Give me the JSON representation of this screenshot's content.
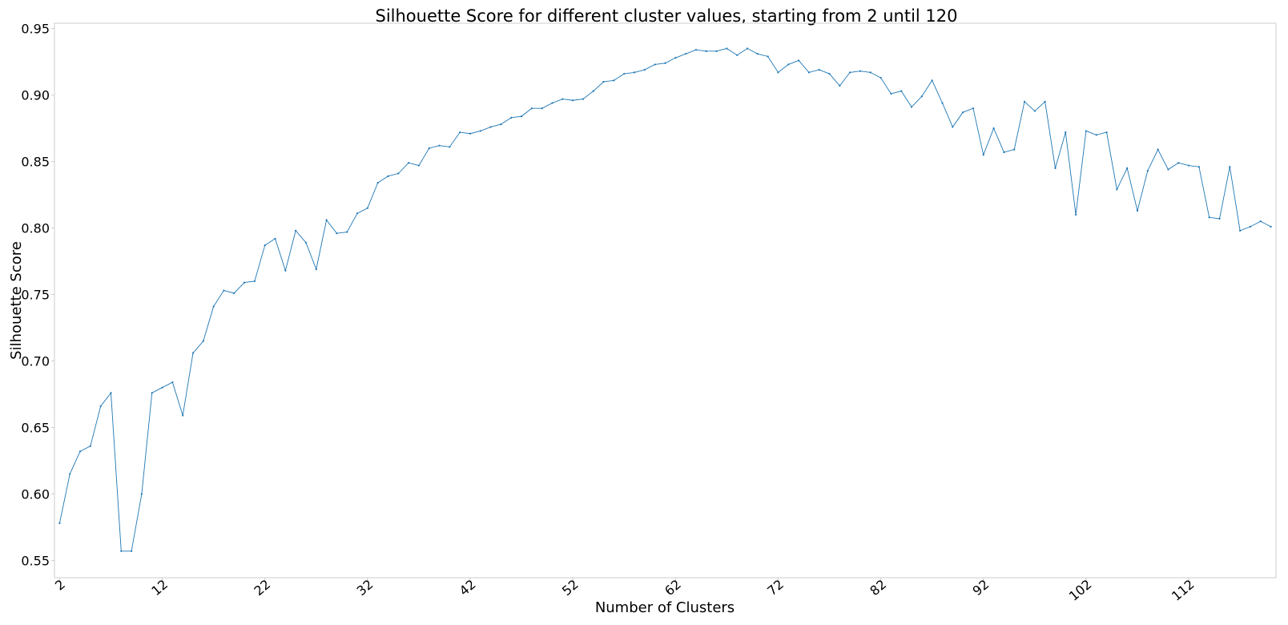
{
  "chart_data": {
    "type": "line",
    "title": "Silhouette Score for different cluster values, starting from 2 until 120",
    "xlabel": "Number of Clusters",
    "ylabel": "Silhouette Score",
    "xlim": [
      1.5,
      120.5
    ],
    "ylim": [
      0.537,
      0.954
    ],
    "xticks": [
      "2",
      "12",
      "22",
      "32",
      "42",
      "52",
      "62",
      "72",
      "82",
      "92",
      "102",
      "112"
    ],
    "yticks": [
      "0.55",
      "0.60",
      "0.65",
      "0.70",
      "0.75",
      "0.80",
      "0.85",
      "0.90",
      "0.95"
    ],
    "grid": false,
    "legend": "none",
    "line_color": "#1f77b4",
    "series": [
      {
        "x": [
          2,
          3,
          4,
          5,
          6,
          7,
          8,
          9,
          10,
          11,
          12,
          13,
          14,
          15,
          16,
          17,
          18,
          19,
          20,
          21,
          22,
          23,
          24,
          25,
          26,
          27,
          28,
          29,
          30,
          31,
          32,
          33,
          34,
          35,
          36,
          37,
          38,
          39,
          40,
          41,
          42,
          43,
          44,
          45,
          46,
          47,
          48,
          49,
          50,
          51,
          52,
          53,
          54,
          55,
          56,
          57,
          58,
          59,
          60,
          61,
          62,
          63,
          64,
          65,
          66,
          67,
          68,
          69,
          70,
          71,
          72,
          73,
          74,
          75,
          76,
          77,
          78,
          79,
          80,
          81,
          82,
          83,
          84,
          85,
          86,
          87,
          88,
          89,
          90,
          91,
          92,
          93,
          94,
          95,
          96,
          97,
          98,
          99,
          100,
          101,
          102,
          103,
          104,
          105,
          106,
          107,
          108,
          109,
          110,
          111,
          112,
          113,
          114,
          115,
          116,
          117,
          118,
          119,
          120
        ],
        "values": [
          0.578,
          0.615,
          0.632,
          0.636,
          0.666,
          0.676,
          0.557,
          0.557,
          0.6,
          0.676,
          0.68,
          0.684,
          0.659,
          0.706,
          0.715,
          0.741,
          0.753,
          0.751,
          0.759,
          0.76,
          0.787,
          0.792,
          0.768,
          0.798,
          0.789,
          0.769,
          0.806,
          0.796,
          0.797,
          0.811,
          0.815,
          0.834,
          0.839,
          0.841,
          0.849,
          0.847,
          0.86,
          0.862,
          0.861,
          0.872,
          0.871,
          0.873,
          0.876,
          0.878,
          0.883,
          0.884,
          0.89,
          0.89,
          0.894,
          0.897,
          0.896,
          0.897,
          0.903,
          0.91,
          0.911,
          0.916,
          0.917,
          0.919,
          0.923,
          0.924,
          0.928,
          0.931,
          0.934,
          0.933,
          0.933,
          0.935,
          0.93,
          0.935,
          0.931,
          0.929,
          0.917,
          0.923,
          0.926,
          0.917,
          0.919,
          0.916,
          0.907,
          0.917,
          0.918,
          0.917,
          0.913,
          0.901,
          0.903,
          0.891,
          0.899,
          0.911,
          0.894,
          0.876,
          0.887,
          0.89,
          0.855,
          0.875,
          0.857,
          0.859,
          0.895,
          0.888,
          0.895,
          0.845,
          0.872,
          0.81,
          0.873,
          0.87,
          0.872,
          0.829,
          0.845,
          0.813,
          0.843,
          0.859,
          0.844,
          0.849,
          0.847,
          0.846,
          0.808,
          0.807,
          0.846,
          0.798,
          0.801,
          0.805,
          0.801
        ]
      }
    ]
  }
}
